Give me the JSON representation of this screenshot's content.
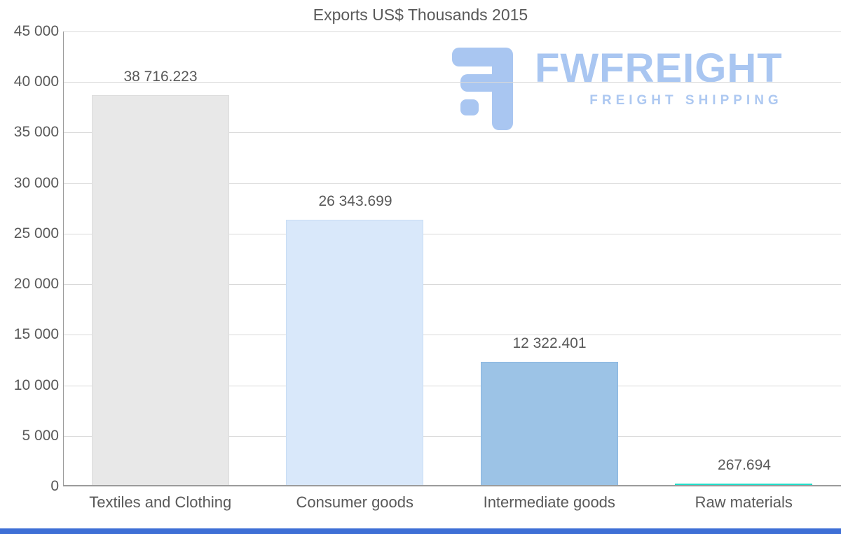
{
  "chart_data": {
    "type": "bar",
    "title": "Exports US$ Thousands 2015",
    "xlabel": "",
    "ylabel": "",
    "categories": [
      "Textiles and Clothing",
      "Consumer goods",
      "Intermediate goods",
      "Raw materials"
    ],
    "values": [
      38716.223,
      26343.699,
      12322.401,
      267.694
    ],
    "value_labels": [
      "38 716.223",
      "26 343.699",
      "12 322.401",
      "267.694"
    ],
    "bar_colors": [
      "#e8e8e8",
      "#d9e8fa",
      "#9cc3e6",
      "#25e2cd"
    ],
    "bar_border_colors": [
      "#dcdcdc",
      "#c8ddf4",
      "#8ab6e0",
      "#14d4bf"
    ],
    "ylim": [
      0,
      45000
    ],
    "ytick_step": 5000,
    "ytick_labels": [
      "0",
      "5 000",
      "10 000",
      "15 000",
      "20 000",
      "25 000",
      "30 000",
      "35 000",
      "40 000",
      "45 000"
    ],
    "grid": true,
    "legend": "none",
    "text_color": "#595959",
    "grid_color": "#d9d9d9",
    "axis_color": "#9b9b9b"
  },
  "watermark": {
    "brand": "FWFREIGHT",
    "tagline": "FREIGHT SHIPPING",
    "color": "#a9c6f1"
  },
  "footer": {
    "bar_color": "#3e6fd6"
  }
}
